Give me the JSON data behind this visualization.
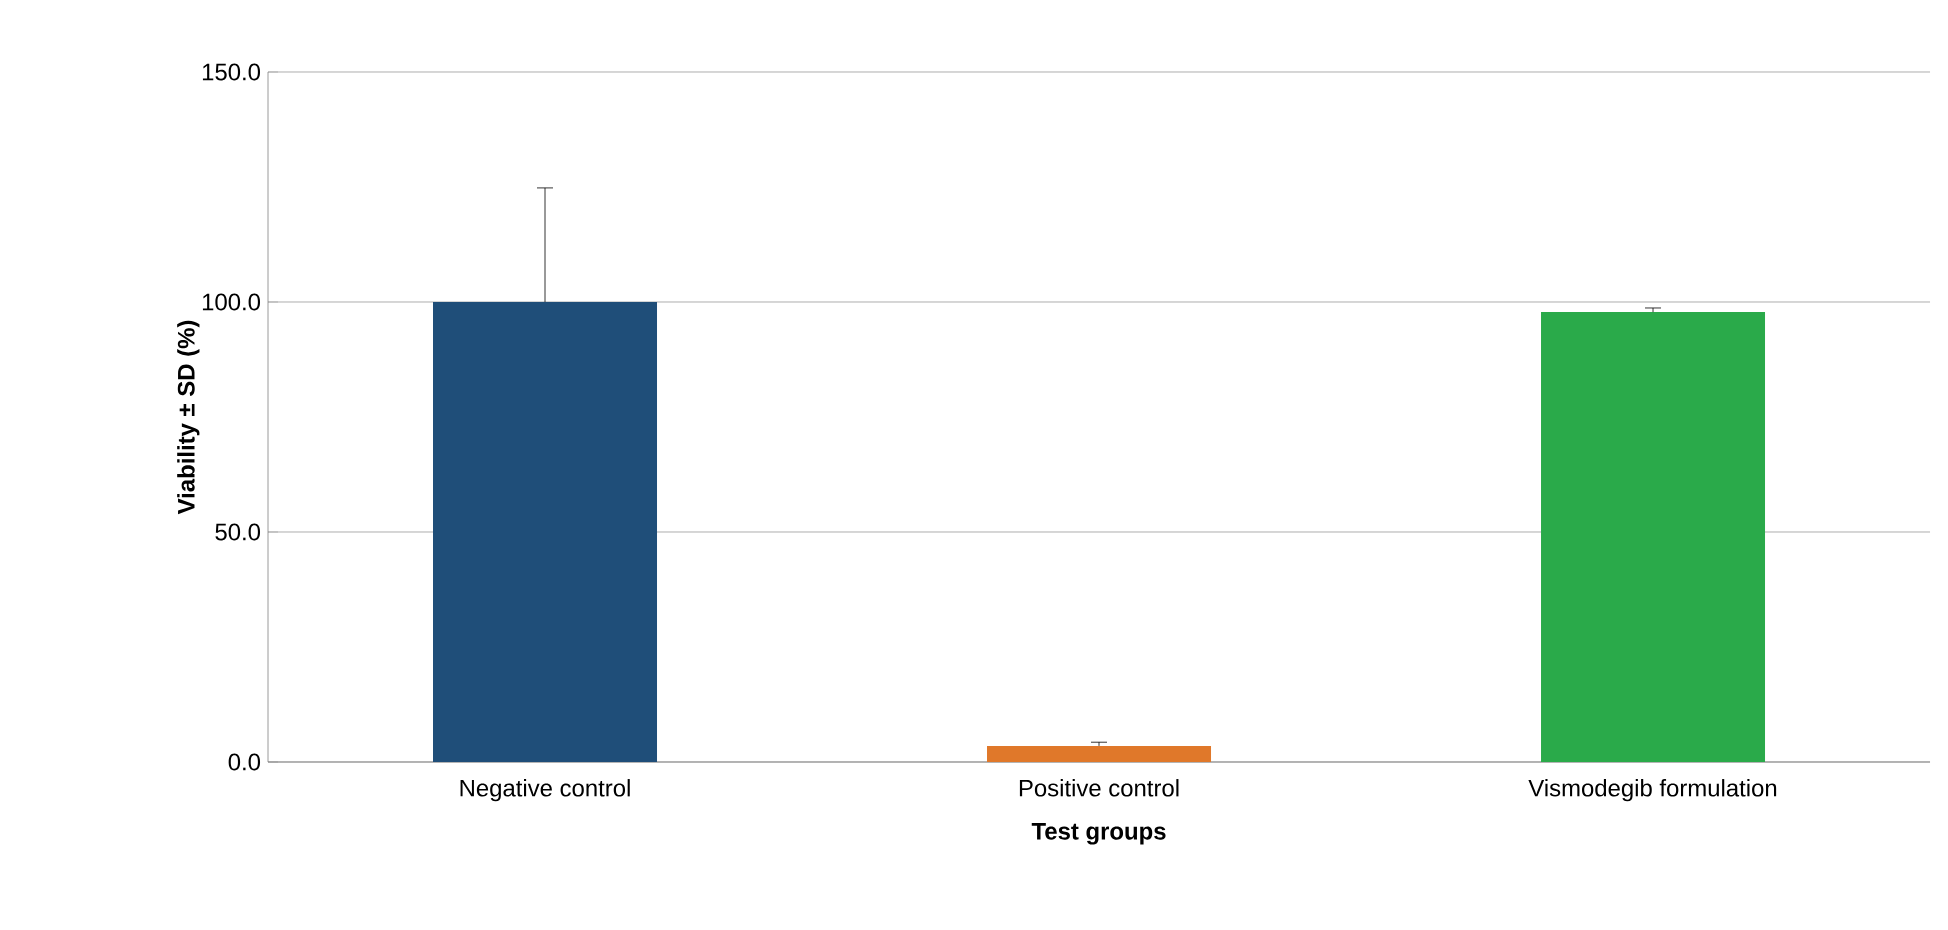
{
  "chart_data": {
    "type": "bar",
    "xlabel": "Test groups",
    "ylabel": "Viability ± SD (%)",
    "categories": [
      "Negative control",
      "Positive control",
      "Vismodegib formulation"
    ],
    "values": [
      100.0,
      3.5,
      97.8
    ],
    "colors": [
      "#1f4e79",
      "#e0782a",
      "#2aaa4a"
    ],
    "errors": [
      [
        100.0,
        124.8
      ],
      [
        3.5,
        4.3
      ],
      [
        97.8,
        98.7
      ]
    ],
    "ylim": [
      0,
      150
    ],
    "yticks": [
      {
        "value": 0,
        "label": "0.0"
      },
      {
        "value": 50,
        "label": "50.0"
      },
      {
        "value": 100,
        "label": "100.0"
      },
      {
        "value": 150,
        "label": "150.0"
      }
    ],
    "grid": "y"
  }
}
